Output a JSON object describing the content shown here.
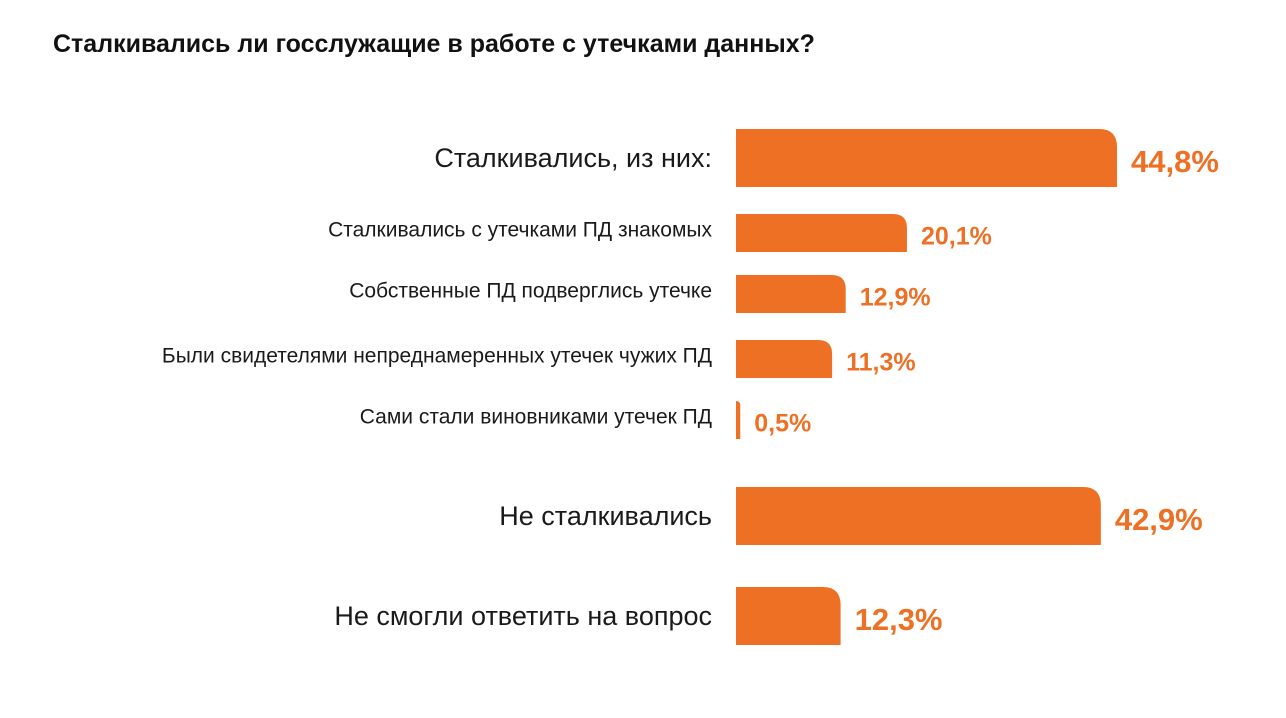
{
  "chart_data": {
    "type": "bar",
    "orientation": "horizontal",
    "title": "Сталкивались ли госслужащие в работе с утечками данных?",
    "xlabel": "",
    "ylabel": "",
    "unit": "%",
    "xlim": [
      0,
      44.8
    ],
    "grid": false,
    "legend": "none",
    "bar_color": "#EE7024",
    "label_color": "#EE7024",
    "categories": [
      "Сталкивались, из них:",
      "Сталкивались с утечками ПД знакомых",
      "Собственные ПД подверглись утечке",
      "Были свидетелями непреднамеренных утечек чужих ПД",
      "Сами стали виновниками утечек ПД",
      "Не сталкивались",
      "Не смогли ответить на вопрос"
    ],
    "values": [
      44.8,
      20.1,
      12.9,
      11.3,
      0.5,
      42.9,
      12.3
    ],
    "value_labels": [
      "44,8%",
      "20,1%",
      "12,9%",
      "11,3%",
      "0,5%",
      "42,9%",
      "12,3%"
    ],
    "levels": [
      "main",
      "sub",
      "sub",
      "sub",
      "sub",
      "main",
      "main"
    ]
  }
}
